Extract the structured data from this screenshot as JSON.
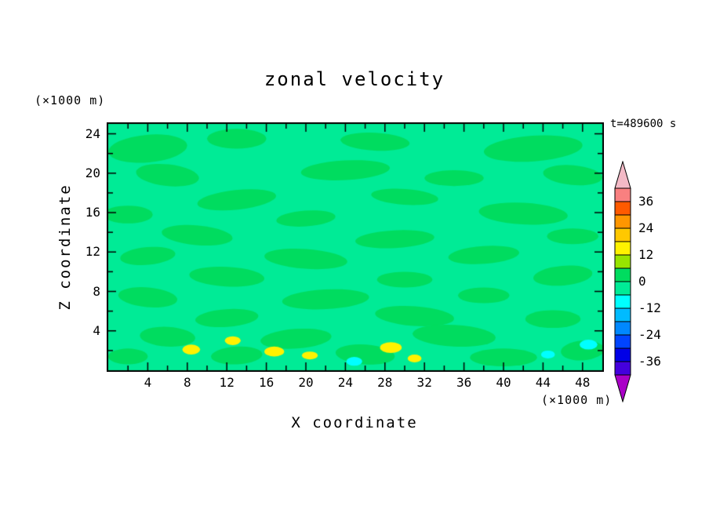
{
  "title": "zonal velocity",
  "timestamp": "t=489600 s",
  "axes": {
    "x": {
      "label": "X coordinate",
      "unit": "(×1000 m)",
      "range": [
        0,
        50
      ],
      "ticks": [
        4,
        8,
        12,
        16,
        20,
        24,
        28,
        32,
        36,
        40,
        44,
        48
      ],
      "minor_step": 2
    },
    "z": {
      "label": "Z coordinate",
      "unit": "(×1000 m)",
      "range": [
        0,
        25
      ],
      "ticks": [
        4,
        8,
        12,
        16,
        20,
        24
      ],
      "minor_step": 2
    }
  },
  "colorbar": {
    "labels": [
      36,
      24,
      12,
      0,
      -12,
      -24,
      -36
    ],
    "level_boundaries": [
      -42,
      -36,
      -30,
      -24,
      -18,
      -12,
      -6,
      0,
      6,
      12,
      18,
      24,
      30,
      36,
      42
    ],
    "colors": [
      "#4400DD",
      "#0000E6",
      "#0044FF",
      "#0088FF",
      "#00BBFF",
      "#00FFFF",
      "#00EB96",
      "#00DC5F",
      "#97E400",
      "#FFF200",
      "#FFC800",
      "#FF9600",
      "#FF5A00",
      "#F98080"
    ],
    "arrow_top_color": "#F3BAC6",
    "arrow_bottom_color": "#AA00C8"
  },
  "chart_data": {
    "type": "heatmap",
    "field_name": "zonal velocity",
    "x_range": [
      0,
      50
    ],
    "z_range": [
      0,
      25
    ],
    "contour_interval": 6,
    "background_value": -2,
    "blobs": [
      {
        "x": 4,
        "z": 22.5,
        "rx": 4.0,
        "rz": 1.4,
        "rot": -5,
        "v": 2
      },
      {
        "x": 13,
        "z": 23.5,
        "rx": 3.0,
        "rz": 1.0,
        "rot": 0,
        "v": 2
      },
      {
        "x": 27,
        "z": 23.2,
        "rx": 3.5,
        "rz": 0.9,
        "rot": 3,
        "v": 2
      },
      {
        "x": 43,
        "z": 22.5,
        "rx": 5.0,
        "rz": 1.3,
        "rot": -4,
        "v": 2
      },
      {
        "x": 6,
        "z": 19.8,
        "rx": 3.2,
        "rz": 1.1,
        "rot": 6,
        "v": 2
      },
      {
        "x": 24,
        "z": 20.3,
        "rx": 4.5,
        "rz": 1.0,
        "rot": -3,
        "v": 2
      },
      {
        "x": 35,
        "z": 19.5,
        "rx": 3.0,
        "rz": 0.8,
        "rot": 0,
        "v": 2
      },
      {
        "x": 47,
        "z": 19.8,
        "rx": 3.0,
        "rz": 1.0,
        "rot": 5,
        "v": 2
      },
      {
        "x": 13,
        "z": 17.3,
        "rx": 4.0,
        "rz": 1.0,
        "rot": -6,
        "v": 2
      },
      {
        "x": 30,
        "z": 17.6,
        "rx": 3.4,
        "rz": 0.8,
        "rot": 4,
        "v": 2
      },
      {
        "x": 2,
        "z": 15.8,
        "rx": 2.5,
        "rz": 0.9,
        "rot": 0,
        "v": 2
      },
      {
        "x": 20,
        "z": 15.4,
        "rx": 3.0,
        "rz": 0.8,
        "rot": -4,
        "v": 2
      },
      {
        "x": 42,
        "z": 15.9,
        "rx": 4.5,
        "rz": 1.1,
        "rot": 3,
        "v": 2
      },
      {
        "x": 9,
        "z": 13.7,
        "rx": 3.6,
        "rz": 1.0,
        "rot": 5,
        "v": 2
      },
      {
        "x": 29,
        "z": 13.3,
        "rx": 4.0,
        "rz": 0.9,
        "rot": -3,
        "v": 2
      },
      {
        "x": 47,
        "z": 13.6,
        "rx": 2.6,
        "rz": 0.8,
        "rot": 0,
        "v": 2
      },
      {
        "x": 4,
        "z": 11.6,
        "rx": 2.8,
        "rz": 0.9,
        "rot": -5,
        "v": 2
      },
      {
        "x": 20,
        "z": 11.3,
        "rx": 4.2,
        "rz": 1.0,
        "rot": 4,
        "v": 2
      },
      {
        "x": 38,
        "z": 11.7,
        "rx": 3.6,
        "rz": 0.9,
        "rot": -4,
        "v": 2
      },
      {
        "x": 12,
        "z": 9.5,
        "rx": 3.8,
        "rz": 1.0,
        "rot": 3,
        "v": 2
      },
      {
        "x": 30,
        "z": 9.2,
        "rx": 2.8,
        "rz": 0.8,
        "rot": 0,
        "v": 2
      },
      {
        "x": 46,
        "z": 9.6,
        "rx": 3.0,
        "rz": 1.0,
        "rot": -5,
        "v": 2
      },
      {
        "x": 4,
        "z": 7.4,
        "rx": 3.0,
        "rz": 1.0,
        "rot": 5,
        "v": 2
      },
      {
        "x": 22,
        "z": 7.2,
        "rx": 4.4,
        "rz": 1.0,
        "rot": -3,
        "v": 2
      },
      {
        "x": 38,
        "z": 7.6,
        "rx": 2.6,
        "rz": 0.8,
        "rot": 0,
        "v": 2
      },
      {
        "x": 12,
        "z": 5.3,
        "rx": 3.2,
        "rz": 0.9,
        "rot": -4,
        "v": 2
      },
      {
        "x": 31,
        "z": 5.5,
        "rx": 4.0,
        "rz": 1.0,
        "rot": 4,
        "v": 2
      },
      {
        "x": 45,
        "z": 5.2,
        "rx": 2.8,
        "rz": 0.9,
        "rot": 0,
        "v": 2
      },
      {
        "x": 6,
        "z": 3.4,
        "rx": 2.8,
        "rz": 1.0,
        "rot": 3,
        "v": 2
      },
      {
        "x": 19,
        "z": 3.2,
        "rx": 3.6,
        "rz": 1.0,
        "rot": -4,
        "v": 2
      },
      {
        "x": 35,
        "z": 3.5,
        "rx": 4.2,
        "rz": 1.1,
        "rot": 3,
        "v": 2
      },
      {
        "x": 2,
        "z": 1.4,
        "rx": 2.0,
        "rz": 0.8,
        "rot": 0,
        "v": 2
      },
      {
        "x": 13,
        "z": 1.5,
        "rx": 2.6,
        "rz": 0.9,
        "rot": -3,
        "v": 2
      },
      {
        "x": 26,
        "z": 1.6,
        "rx": 3.0,
        "rz": 1.0,
        "rot": 4,
        "v": 2
      },
      {
        "x": 40,
        "z": 1.3,
        "rx": 3.4,
        "rz": 0.9,
        "rot": 0,
        "v": 2
      },
      {
        "x": 48,
        "z": 2.0,
        "rx": 2.2,
        "rz": 1.0,
        "rot": -4,
        "v": 2
      },
      {
        "x": 8.4,
        "z": 2.1,
        "rx": 0.9,
        "rz": 0.5,
        "rot": 0,
        "v": 14
      },
      {
        "x": 12.6,
        "z": 3.0,
        "rx": 0.8,
        "rz": 0.45,
        "rot": 0,
        "v": 14
      },
      {
        "x": 16.8,
        "z": 1.9,
        "rx": 1.0,
        "rz": 0.5,
        "rot": 0,
        "v": 14
      },
      {
        "x": 20.4,
        "z": 1.5,
        "rx": 0.8,
        "rz": 0.4,
        "rot": 0,
        "v": 14
      },
      {
        "x": 28.6,
        "z": 2.3,
        "rx": 1.1,
        "rz": 0.55,
        "rot": 0,
        "v": 14
      },
      {
        "x": 31.0,
        "z": 1.2,
        "rx": 0.7,
        "rz": 0.4,
        "rot": 0,
        "v": 14
      },
      {
        "x": 24.9,
        "z": 0.9,
        "rx": 0.8,
        "rz": 0.45,
        "rot": 0,
        "v": -8
      },
      {
        "x": 44.5,
        "z": 1.6,
        "rx": 0.7,
        "rz": 0.4,
        "rot": 0,
        "v": -8
      },
      {
        "x": 48.6,
        "z": 2.6,
        "rx": 0.9,
        "rz": 0.5,
        "rot": 0,
        "v": -8
      }
    ]
  }
}
